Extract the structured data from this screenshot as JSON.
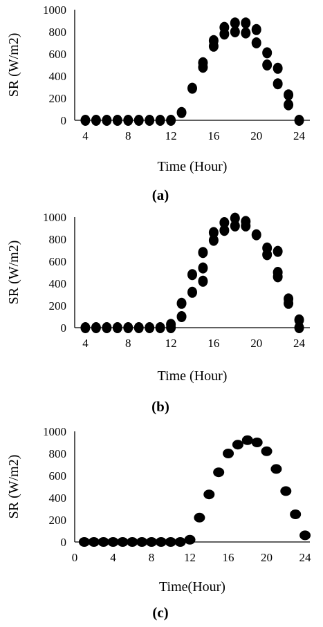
{
  "chart_data": [
    {
      "panel": "(a)",
      "type": "scatter",
      "xlabel": "Time (Hour)",
      "ylabel": "SR (W/m2)",
      "xlim": [
        3,
        25
      ],
      "ylim": [
        0,
        1000
      ],
      "xticks": [
        4,
        8,
        12,
        16,
        20,
        24
      ],
      "yticks": [
        0,
        200,
        400,
        600,
        800,
        1000
      ],
      "marker": "elongated-filled",
      "color": "#000000",
      "points": [
        [
          4,
          0
        ],
        [
          5,
          0
        ],
        [
          6,
          0
        ],
        [
          7,
          0
        ],
        [
          8,
          0
        ],
        [
          9,
          0
        ],
        [
          10,
          0
        ],
        [
          11,
          0
        ],
        [
          12,
          0
        ],
        [
          13,
          70
        ],
        [
          14,
          290
        ],
        [
          15,
          480
        ],
        [
          15,
          520
        ],
        [
          16,
          670
        ],
        [
          16,
          720
        ],
        [
          17,
          780
        ],
        [
          17,
          840
        ],
        [
          18,
          800
        ],
        [
          18,
          880
        ],
        [
          19,
          790
        ],
        [
          19,
          880
        ],
        [
          20,
          700
        ],
        [
          20,
          820
        ],
        [
          21,
          500
        ],
        [
          21,
          610
        ],
        [
          22,
          330
        ],
        [
          22,
          470
        ],
        [
          23,
          140
        ],
        [
          23,
          230
        ],
        [
          24,
          0
        ]
      ]
    },
    {
      "panel": "(b)",
      "type": "scatter",
      "xlabel": "Time (Hour)",
      "ylabel": "SR (W/m2)",
      "xlim": [
        3,
        25
      ],
      "ylim": [
        0,
        1000
      ],
      "xticks": [
        4,
        8,
        12,
        16,
        20,
        24
      ],
      "yticks": [
        0,
        200,
        400,
        600,
        800,
        1000
      ],
      "marker": "elongated-filled",
      "color": "#000000",
      "points": [
        [
          4,
          0
        ],
        [
          5,
          0
        ],
        [
          6,
          0
        ],
        [
          7,
          0
        ],
        [
          8,
          0
        ],
        [
          9,
          0
        ],
        [
          10,
          0
        ],
        [
          11,
          0
        ],
        [
          12,
          0
        ],
        [
          12,
          30
        ],
        [
          13,
          100
        ],
        [
          13,
          220
        ],
        [
          14,
          320
        ],
        [
          14,
          480
        ],
        [
          15,
          420
        ],
        [
          15,
          540
        ],
        [
          15,
          680
        ],
        [
          16,
          790
        ],
        [
          16,
          860
        ],
        [
          17,
          880
        ],
        [
          17,
          950
        ],
        [
          18,
          920
        ],
        [
          18,
          990
        ],
        [
          19,
          920
        ],
        [
          19,
          960
        ],
        [
          20,
          840
        ],
        [
          21,
          660
        ],
        [
          21,
          720
        ],
        [
          22,
          690
        ],
        [
          22,
          460
        ],
        [
          22,
          500
        ],
        [
          23,
          220
        ],
        [
          23,
          260
        ],
        [
          24,
          0
        ],
        [
          24,
          70
        ]
      ]
    },
    {
      "panel": "(c)",
      "type": "scatter",
      "xlabel": "Time(Hour)",
      "ylabel": "SR (W/m2)",
      "xlim": [
        0,
        24.5
      ],
      "ylim": [
        0,
        1000
      ],
      "xticks": [
        0,
        4,
        8,
        12,
        16,
        20,
        24
      ],
      "yticks": [
        0,
        200,
        400,
        600,
        800,
        1000
      ],
      "marker": "oval-filled",
      "color": "#000000",
      "points": [
        [
          1,
          0
        ],
        [
          2,
          0
        ],
        [
          3,
          0
        ],
        [
          4,
          0
        ],
        [
          5,
          0
        ],
        [
          6,
          0
        ],
        [
          7,
          0
        ],
        [
          8,
          0
        ],
        [
          9,
          0
        ],
        [
          10,
          0
        ],
        [
          11,
          0
        ],
        [
          12,
          20
        ],
        [
          13,
          220
        ],
        [
          14,
          430
        ],
        [
          15,
          630
        ],
        [
          16,
          800
        ],
        [
          17,
          880
        ],
        [
          18,
          920
        ],
        [
          19,
          900
        ],
        [
          20,
          820
        ],
        [
          21,
          660
        ],
        [
          22,
          460
        ],
        [
          23,
          250
        ],
        [
          24,
          60
        ]
      ]
    }
  ]
}
